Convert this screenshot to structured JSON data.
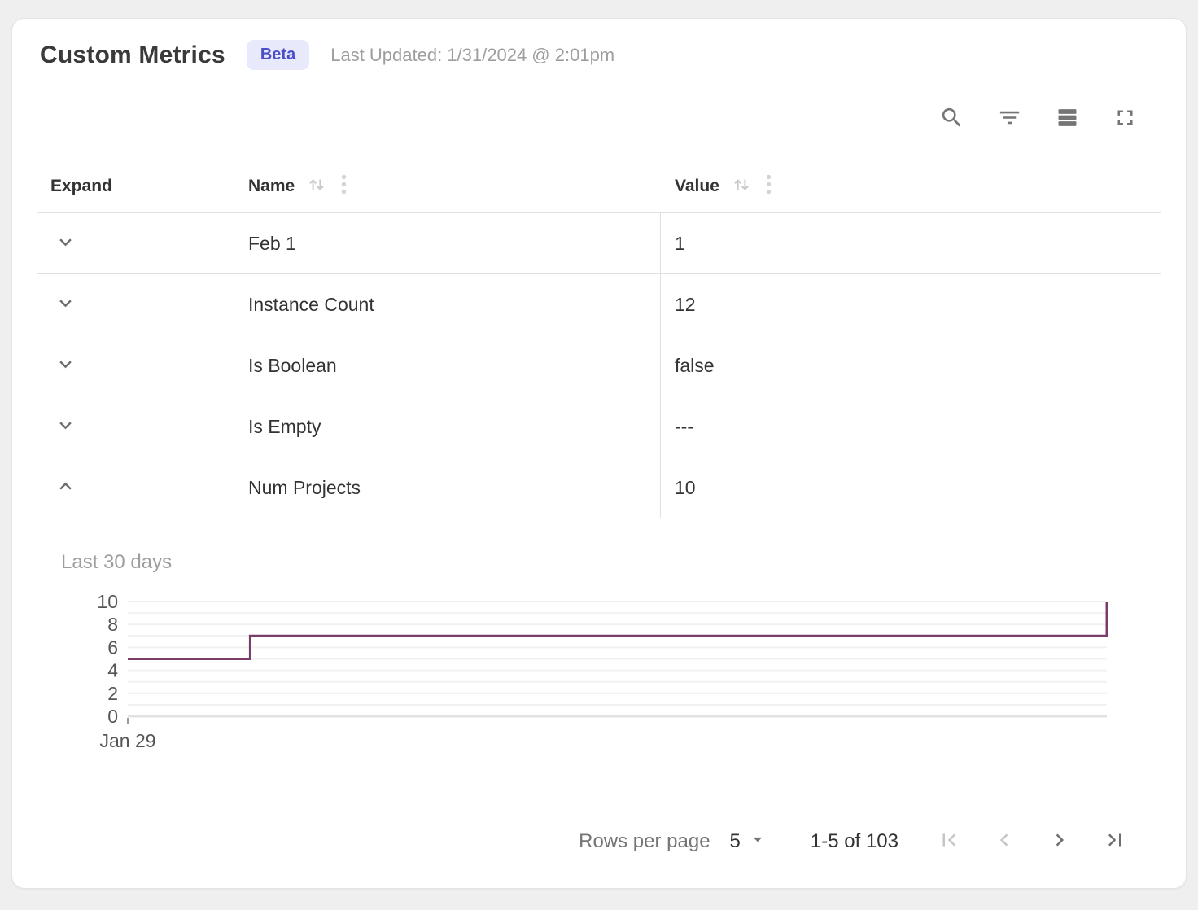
{
  "header": {
    "title": "Custom Metrics",
    "badge": "Beta",
    "last_updated": "Last Updated: 1/31/2024 @ 2:01pm"
  },
  "toolbar": {
    "icons": [
      "search",
      "filter-list",
      "density",
      "fullscreen"
    ]
  },
  "table": {
    "columns": [
      {
        "label": "Expand",
        "sortable": false
      },
      {
        "label": "Name",
        "sortable": true
      },
      {
        "label": "Value",
        "sortable": true
      }
    ],
    "rows": [
      {
        "name": "Feb 1",
        "value": "1",
        "expanded": false
      },
      {
        "name": "Instance Count",
        "value": "12",
        "expanded": false
      },
      {
        "name": "Is Boolean",
        "value": "false",
        "expanded": false
      },
      {
        "name": "Is Empty",
        "value": "---",
        "expanded": false
      },
      {
        "name": "Num Projects",
        "value": "10",
        "expanded": true
      }
    ]
  },
  "chart_data": {
    "type": "line",
    "subtype": "step",
    "title": "Last 30 days",
    "metric": "Num Projects",
    "x_tick_labels": [
      "Jan 29"
    ],
    "y_ticks": [
      0,
      2,
      4,
      6,
      8,
      10
    ],
    "ylim": [
      0,
      10
    ],
    "grid": true,
    "line_color": "#7b3d68",
    "points": [
      {
        "x_frac": 0.0,
        "y": 5
      },
      {
        "x_frac": 0.125,
        "y": 5
      },
      {
        "x_frac": 0.125,
        "y": 7
      },
      {
        "x_frac": 1.0,
        "y": 7
      },
      {
        "x_frac": 1.0,
        "y": 10
      }
    ]
  },
  "footer": {
    "rows_per_page_label": "Rows per page",
    "rows_per_page_value": "5",
    "range_label": "1-5 of 103",
    "pagination": {
      "first_enabled": false,
      "prev_enabled": false,
      "next_enabled": true,
      "last_enabled": true
    }
  },
  "colors": {
    "badge_bg": "#e8e9fb",
    "badge_text": "#4a4ec9",
    "chart_line": "#7b3d68",
    "border": "#e0e0e0"
  }
}
